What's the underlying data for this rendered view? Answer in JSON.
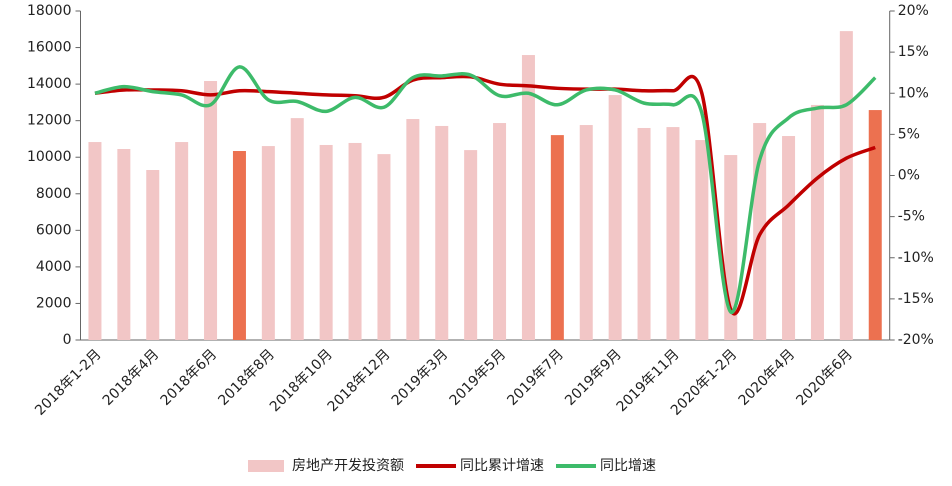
{
  "chart_data": {
    "type": "bar",
    "categories": [
      "2018年1-2月",
      null,
      "2018年4月",
      null,
      "2018年6月",
      null,
      "2018年8月",
      null,
      "2018年10月",
      null,
      "2018年12月",
      null,
      "2019年3月",
      null,
      "2019年5月",
      null,
      "2019年7月",
      null,
      "2019年9月",
      null,
      "2019年11月",
      null,
      "2020年1-2月",
      null,
      "2020年4月",
      null,
      "2020年6月",
      null
    ],
    "series": [
      {
        "name": "房地产开发投资额",
        "type": "bar",
        "colors": [
          "#f2c6c6",
          "#f2c6c6",
          "#f2c6c6",
          "#f2c6c6",
          "#f2c6c6",
          "#ec7150",
          "#f2c6c6",
          "#f2c6c6",
          "#f2c6c6",
          "#f2c6c6",
          "#f2c6c6",
          "#f2c6c6",
          "#f2c6c6",
          "#f2c6c6",
          "#f2c6c6",
          "#f2c6c6",
          "#ec7150",
          "#f2c6c6",
          "#f2c6c6",
          "#f2c6c6",
          "#f2c6c6",
          "#f2c6c6",
          "#f2c6c6",
          "#f2c6c6",
          "#f2c6c6",
          "#f2c6c6",
          "#f2c6c6",
          "#ec7150"
        ],
        "color": "#f2c6c6",
        "values": [
          10830,
          10450,
          9300,
          10830,
          14170,
          10340,
          10610,
          12140,
          10670,
          10780,
          10170,
          12090,
          11710,
          10390,
          11870,
          15590,
          11210,
          11760,
          13400,
          11600,
          11650,
          10940,
          10120,
          11870,
          11160,
          12860,
          16900,
          12580
        ]
      },
      {
        "name": "同比累计增速",
        "type": "line",
        "axis": "y2",
        "color": "#c00000",
        "values": [
          10.0,
          10.4,
          10.4,
          10.3,
          9.8,
          10.3,
          10.2,
          10.0,
          9.8,
          9.7,
          9.5,
          11.6,
          11.9,
          12.0,
          11.1,
          10.9,
          10.6,
          10.5,
          10.5,
          10.3,
          10.3,
          10.0,
          -16.3,
          -7.2,
          -3.6,
          -0.3,
          2.1,
          3.4
        ]
      },
      {
        "name": "同比增速",
        "type": "line",
        "axis": "y2",
        "color": "#3dbb6a",
        "values": [
          10.0,
          10.8,
          10.2,
          9.8,
          8.6,
          13.2,
          9.2,
          9.0,
          7.8,
          9.5,
          8.3,
          11.9,
          12.1,
          12.2,
          9.7,
          10.0,
          8.6,
          10.4,
          10.4,
          8.8,
          8.6,
          7.6,
          -16.6,
          1.9,
          7.0,
          8.2,
          8.6,
          11.9
        ]
      }
    ],
    "ylim": [
      0,
      18000
    ],
    "yticks": [
      0,
      2000,
      4000,
      6000,
      8000,
      10000,
      12000,
      14000,
      16000,
      18000
    ],
    "y2lim": [
      -20,
      20
    ],
    "y2ticks": [
      {
        "value": -20,
        "label": "-20%"
      },
      {
        "value": -15,
        "label": "-15%"
      },
      {
        "value": -10,
        "label": "-10%"
      },
      {
        "value": -5,
        "label": "-5%"
      },
      {
        "value": 0,
        "label": "0%"
      },
      {
        "value": 5,
        "label": "5%"
      },
      {
        "value": 10,
        "label": "10%"
      },
      {
        "value": 15,
        "label": "15%"
      },
      {
        "value": 20,
        "label": "20%"
      }
    ],
    "grid": false,
    "legend": "bottom"
  }
}
